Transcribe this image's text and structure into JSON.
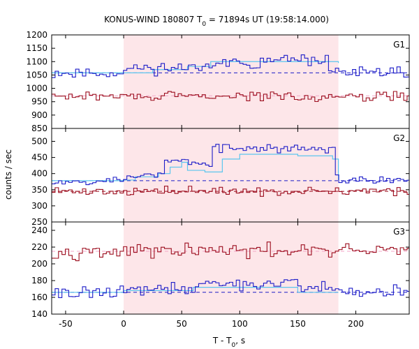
{
  "chart_data": {
    "type": "line",
    "title": "KONUS-WIND 180807 T",
    "title_sub": "0",
    "title_rest": " = 71894s UT (19:58:14.000)",
    "xlabel_main": "T - T",
    "xlabel_sub": "0",
    "xlabel_rest": ", s",
    "ylabel": "counts / sec",
    "xlim": [
      -62,
      246
    ],
    "xticks": [
      -50,
      0,
      50,
      100,
      150,
      200
    ],
    "shaded_interval": [
      0,
      185
    ],
    "step_s": 2.944,
    "colors": {
      "shade": "#fde6e9",
      "blue": "#1c1cc8",
      "red": "#9c0d1e",
      "light_blue": "#5bc6ee",
      "pink": "#f4a6c8",
      "frame": "#000000"
    },
    "panels": [
      {
        "name": "G1",
        "ylim": [
          850,
          1200
        ],
        "yticks": [
          850,
          900,
          950,
          1000,
          1050,
          1100,
          1150,
          1200
        ],
        "series": [
          {
            "color": "blue",
            "base": 1058,
            "noise": 14,
            "seed": 11,
            "bumps": [
              [
                0,
                185,
                18
              ],
              [
                70,
                100,
                22
              ],
              [
                115,
                175,
                28
              ]
            ]
          },
          {
            "color": "red",
            "base": 970,
            "noise": 12,
            "seed": 29,
            "bumps": []
          }
        ],
        "background": [
          {
            "color": "blue",
            "value": 1058,
            "x_start": -62,
            "x_end": 246
          },
          {
            "color": "pink",
            "value": 972,
            "x_start": -62,
            "x_end": 246
          }
        ],
        "model": [
          [
            -62,
            1058
          ],
          [
            0,
            1058
          ],
          [
            25,
            1070
          ],
          [
            55,
            1082
          ],
          [
            75,
            1100
          ],
          [
            150,
            1100
          ],
          [
            185,
            1095
          ]
        ]
      },
      {
        "name": "G2",
        "ylim": [
          250,
          540
        ],
        "yticks": [
          250,
          300,
          350,
          400,
          450,
          500
        ],
        "series": [
          {
            "color": "blue",
            "base": 378,
            "noise": 9,
            "seed": 53,
            "bumps": [
              [
                0,
                185,
                18
              ],
              [
                35,
                55,
                42
              ],
              [
                55,
                75,
                35
              ],
              [
                75,
                180,
                82
              ]
            ]
          },
          {
            "color": "red",
            "base": 345,
            "noise": 9,
            "seed": 71,
            "bumps": []
          }
        ],
        "background": [
          {
            "color": "blue",
            "value": 378,
            "x_start": -62,
            "x_end": 246
          },
          {
            "color": "red",
            "value": 345,
            "x_start": -62,
            "x_end": 246
          }
        ],
        "model": [
          [
            -62,
            378
          ],
          [
            0,
            380
          ],
          [
            10,
            390
          ],
          [
            30,
            400
          ],
          [
            40,
            420
          ],
          [
            50,
            435
          ],
          [
            55,
            410
          ],
          [
            70,
            405
          ],
          [
            85,
            445
          ],
          [
            100,
            460
          ],
          [
            150,
            455
          ],
          [
            180,
            445
          ],
          [
            185,
            380
          ]
        ]
      },
      {
        "name": "G3",
        "ylim": [
          140,
          250
        ],
        "yticks": [
          140,
          160,
          180,
          200,
          220,
          240
        ],
        "series": [
          {
            "color": "red",
            "base": 215,
            "noise": 6,
            "seed": 97,
            "bumps": []
          },
          {
            "color": "blue",
            "base": 166,
            "noise": 5,
            "seed": 131,
            "bumps": [
              [
                0,
                185,
                4
              ],
              [
                60,
                150,
                6
              ]
            ]
          }
        ],
        "background": [
          {
            "color": "pink",
            "value": 215,
            "x_start": -62,
            "x_end": 246
          },
          {
            "color": "blue",
            "value": 166,
            "x_start": -62,
            "x_end": 246
          }
        ],
        "model": [
          [
            -62,
            166
          ],
          [
            0,
            168
          ],
          [
            60,
            172
          ],
          [
            150,
            166
          ],
          [
            185,
            166
          ]
        ]
      }
    ]
  }
}
